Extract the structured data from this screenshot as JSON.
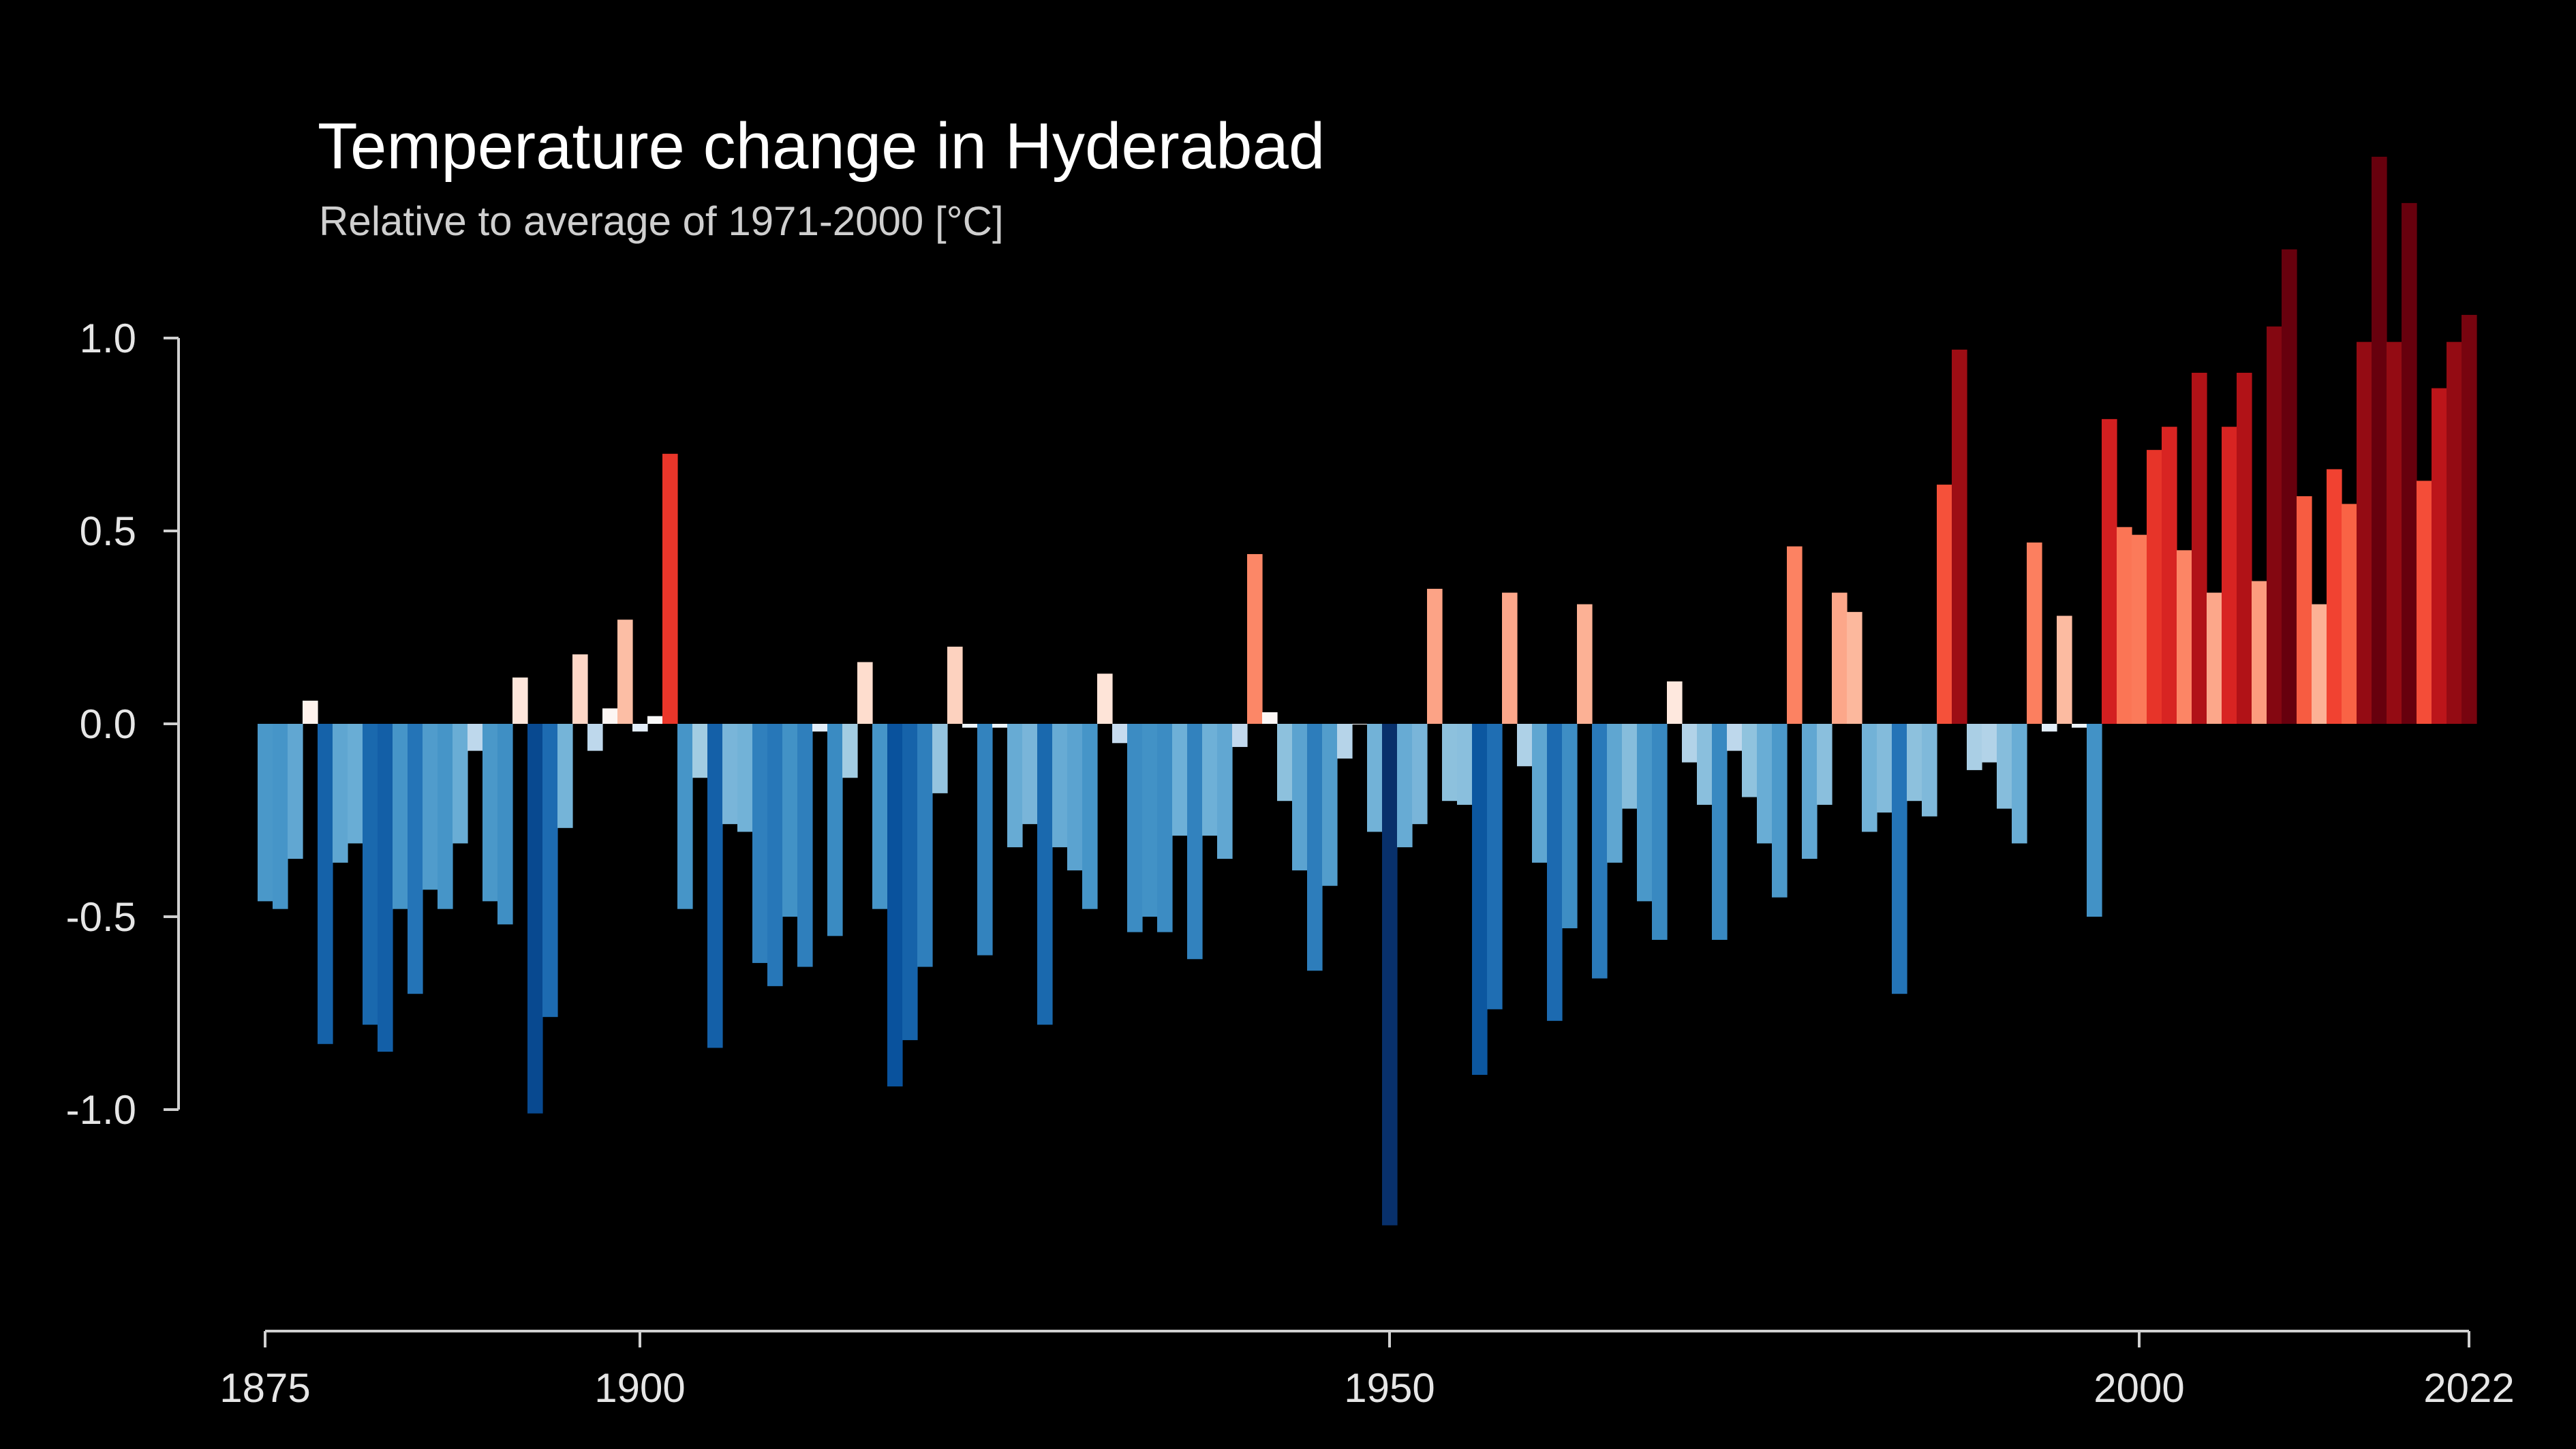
{
  "chart_data": {
    "type": "bar",
    "title": "Temperature change in Hyderabad",
    "subtitle": "Relative to average of 1971-2000  [°C]",
    "xlabel": "",
    "ylabel": "",
    "x_start": 1875,
    "x_end": 2022,
    "xlim": [
      1875,
      2022
    ],
    "ylim": [
      -1.5,
      1.5
    ],
    "yticks": [
      "-1.0",
      "-0.5",
      "0.0",
      "0.5",
      "1.0"
    ],
    "xticks": [
      "1875",
      "1900",
      "1950",
      "2000",
      "2022"
    ],
    "grid": false,
    "legend": "none",
    "colors": {
      "background": "#000000",
      "axis": "#d0d0d0",
      "text": "#e6e6e6",
      "cold_extreme": "#08306b",
      "warm_extreme": "#67000d"
    },
    "values": [
      -0.46,
      -0.48,
      -0.35,
      0.06,
      -0.83,
      -0.36,
      -0.31,
      -0.78,
      -0.85,
      -0.48,
      -0.7,
      -0.43,
      -0.48,
      -0.31,
      -0.07,
      -0.46,
      -0.52,
      0.12,
      -1.01,
      -0.76,
      -0.27,
      0.18,
      -0.07,
      0.04,
      0.27,
      -0.02,
      0.02,
      0.7,
      -0.48,
      -0.14,
      -0.84,
      -0.26,
      -0.28,
      -0.62,
      -0.68,
      -0.5,
      -0.63,
      -0.02,
      -0.55,
      -0.14,
      0.16,
      -0.48,
      -0.94,
      -0.82,
      -0.63,
      -0.18,
      0.2,
      -0.01,
      -0.6,
      -0.01,
      -0.32,
      -0.26,
      -0.78,
      -0.32,
      -0.38,
      -0.48,
      0.13,
      -0.05,
      -0.54,
      -0.5,
      -0.54,
      -0.29,
      -0.61,
      -0.29,
      -0.35,
      -0.06,
      0.44,
      0.03,
      -0.2,
      -0.38,
      -0.64,
      -0.42,
      -0.09,
      0.0,
      -0.28,
      -1.3,
      -0.32,
      -0.26,
      0.35,
      -0.2,
      -0.21,
      -0.91,
      -0.74,
      0.34,
      -0.11,
      -0.36,
      -0.77,
      -0.53,
      0.31,
      -0.66,
      -0.36,
      -0.22,
      -0.46,
      -0.56,
      0.11,
      -0.1,
      -0.21,
      -0.56,
      -0.07,
      -0.19,
      -0.31,
      -0.45,
      0.46,
      -0.35,
      -0.21,
      0.34,
      0.29,
      -0.28,
      -0.23,
      -0.7,
      -0.2,
      -0.24,
      0.62,
      0.97,
      -0.12,
      -0.1,
      -0.22,
      -0.31,
      0.47,
      -0.02,
      0.28,
      -0.01,
      -0.5,
      0.79,
      0.51,
      0.49,
      0.71,
      0.77,
      0.45,
      0.91,
      0.34,
      0.77,
      0.91,
      0.37,
      1.03,
      1.23,
      0.59,
      0.31,
      0.66,
      0.57,
      0.99,
      1.47,
      0.99,
      1.35,
      0.63,
      0.87,
      0.99,
      1.06
    ]
  }
}
